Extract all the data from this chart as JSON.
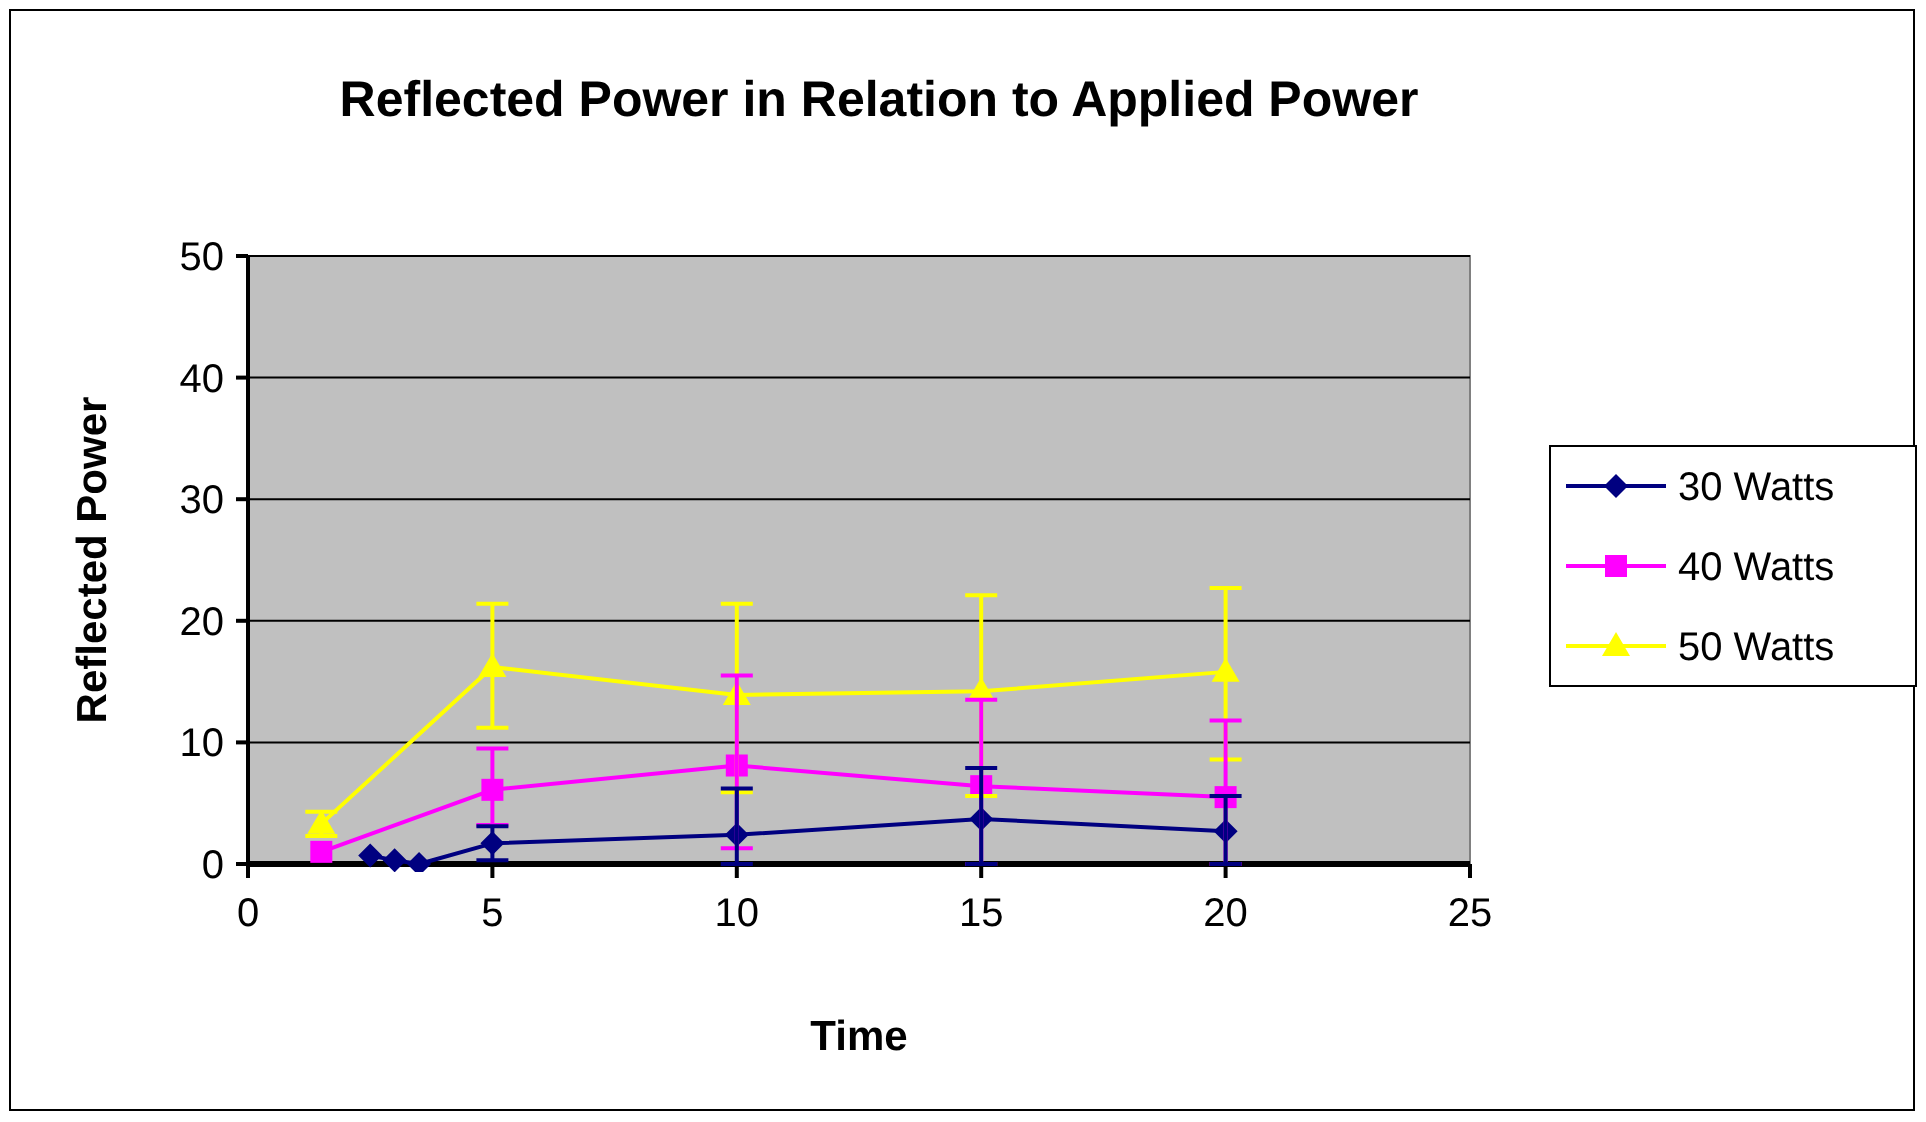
{
  "chart_data": {
    "type": "line",
    "title": "Reflected Power in Relation to Applied Power",
    "xlabel": "Time",
    "ylabel": "Reflected Power",
    "xlim": [
      0,
      25
    ],
    "xticks": [
      0,
      5,
      10,
      15,
      20,
      25
    ],
    "ylim": [
      0,
      50
    ],
    "yticks": [
      0,
      10,
      20,
      30,
      40,
      50
    ],
    "grid": "y",
    "legend": "right",
    "series": [
      {
        "name": "30 Watts",
        "color": "#000080",
        "marker": "diamond",
        "x": [
          2.5,
          3,
          3.5,
          5,
          10,
          15,
          20
        ],
        "values": [
          0.7,
          0.3,
          0,
          1.7,
          2.4,
          3.7,
          2.7
        ],
        "errors": [
          null,
          null,
          null,
          [
            0.3,
            3.1
          ],
          [
            0,
            6.2
          ],
          [
            0,
            7.9
          ],
          [
            0,
            5.6
          ]
        ]
      },
      {
        "name": "40 Watts",
        "color": "#ff00ff",
        "marker": "square",
        "x": [
          1.5,
          5,
          10,
          15,
          20
        ],
        "values": [
          1,
          6.1,
          8.1,
          6.4,
          5.5
        ],
        "errors": [
          null,
          [
            3.2,
            9.5
          ],
          [
            1.3,
            15.5
          ],
          [
            0,
            13.5
          ],
          [
            0,
            11.8
          ]
        ]
      },
      {
        "name": "50 Watts",
        "color": "#ffff00",
        "marker": "triangle",
        "x": [
          1.5,
          5,
          10,
          15,
          20
        ],
        "values": [
          3.3,
          16.2,
          13.9,
          14.2,
          15.8
        ],
        "errors": [
          [
            2.3,
            4.3
          ],
          [
            11.2,
            21.4
          ],
          [
            5.9,
            21.4
          ],
          [
            5.6,
            22.1
          ],
          [
            8.6,
            22.7
          ]
        ]
      }
    ]
  }
}
